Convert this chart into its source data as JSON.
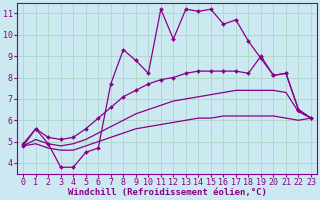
{
  "xlabel": "Windchill (Refroidissement éolien,°C)",
  "xlim": [
    -0.5,
    23.5
  ],
  "ylim": [
    3.5,
    11.5
  ],
  "xticks": [
    0,
    1,
    2,
    3,
    4,
    5,
    6,
    7,
    8,
    9,
    10,
    11,
    12,
    13,
    14,
    15,
    16,
    17,
    18,
    19,
    20,
    21,
    22,
    23
  ],
  "yticks": [
    4,
    5,
    6,
    7,
    8,
    9,
    10,
    11
  ],
  "background_color": "#cce8f0",
  "grid_color": "#b0d8cc",
  "line_color": "#880088",
  "line1_x": [
    0,
    1,
    2,
    3,
    4,
    5,
    6,
    7,
    8,
    9,
    10,
    11,
    12,
    13,
    14,
    15,
    16,
    17,
    18,
    19,
    20,
    21,
    22,
    23
  ],
  "line1_y": [
    4.8,
    5.6,
    4.9,
    3.8,
    3.8,
    4.5,
    4.7,
    7.7,
    9.3,
    8.8,
    8.2,
    11.2,
    9.8,
    11.2,
    11.1,
    11.2,
    10.5,
    10.7,
    9.7,
    8.9,
    8.1,
    8.2,
    6.5,
    6.1
  ],
  "line2_x": [
    0,
    1,
    2,
    3,
    4,
    5,
    6,
    7,
    8,
    9,
    10,
    11,
    12,
    13,
    14,
    15,
    16,
    17,
    18,
    19,
    20,
    21,
    22,
    23
  ],
  "line2_y": [
    4.9,
    5.6,
    5.2,
    5.1,
    5.2,
    5.6,
    6.1,
    6.6,
    7.1,
    7.4,
    7.7,
    7.9,
    8.0,
    8.2,
    8.3,
    8.3,
    8.3,
    8.3,
    8.2,
    9.0,
    8.1,
    8.2,
    6.5,
    6.1
  ],
  "line3_x": [
    0,
    1,
    2,
    3,
    4,
    5,
    6,
    7,
    8,
    9,
    10,
    11,
    12,
    13,
    14,
    15,
    16,
    17,
    18,
    19,
    20,
    21,
    22,
    23
  ],
  "line3_y": [
    4.8,
    5.1,
    4.9,
    4.8,
    4.9,
    5.1,
    5.4,
    5.7,
    6.0,
    6.3,
    6.5,
    6.7,
    6.9,
    7.0,
    7.1,
    7.2,
    7.3,
    7.4,
    7.4,
    7.4,
    7.4,
    7.3,
    6.4,
    6.1
  ],
  "line4_x": [
    0,
    1,
    2,
    3,
    4,
    5,
    6,
    7,
    8,
    9,
    10,
    11,
    12,
    13,
    14,
    15,
    16,
    17,
    18,
    19,
    20,
    21,
    22,
    23
  ],
  "line4_y": [
    4.8,
    4.9,
    4.7,
    4.6,
    4.6,
    4.8,
    5.0,
    5.2,
    5.4,
    5.6,
    5.7,
    5.8,
    5.9,
    6.0,
    6.1,
    6.1,
    6.2,
    6.2,
    6.2,
    6.2,
    6.2,
    6.1,
    6.0,
    6.1
  ],
  "tick_fontsize": 6,
  "xlabel_fontsize": 6.5
}
